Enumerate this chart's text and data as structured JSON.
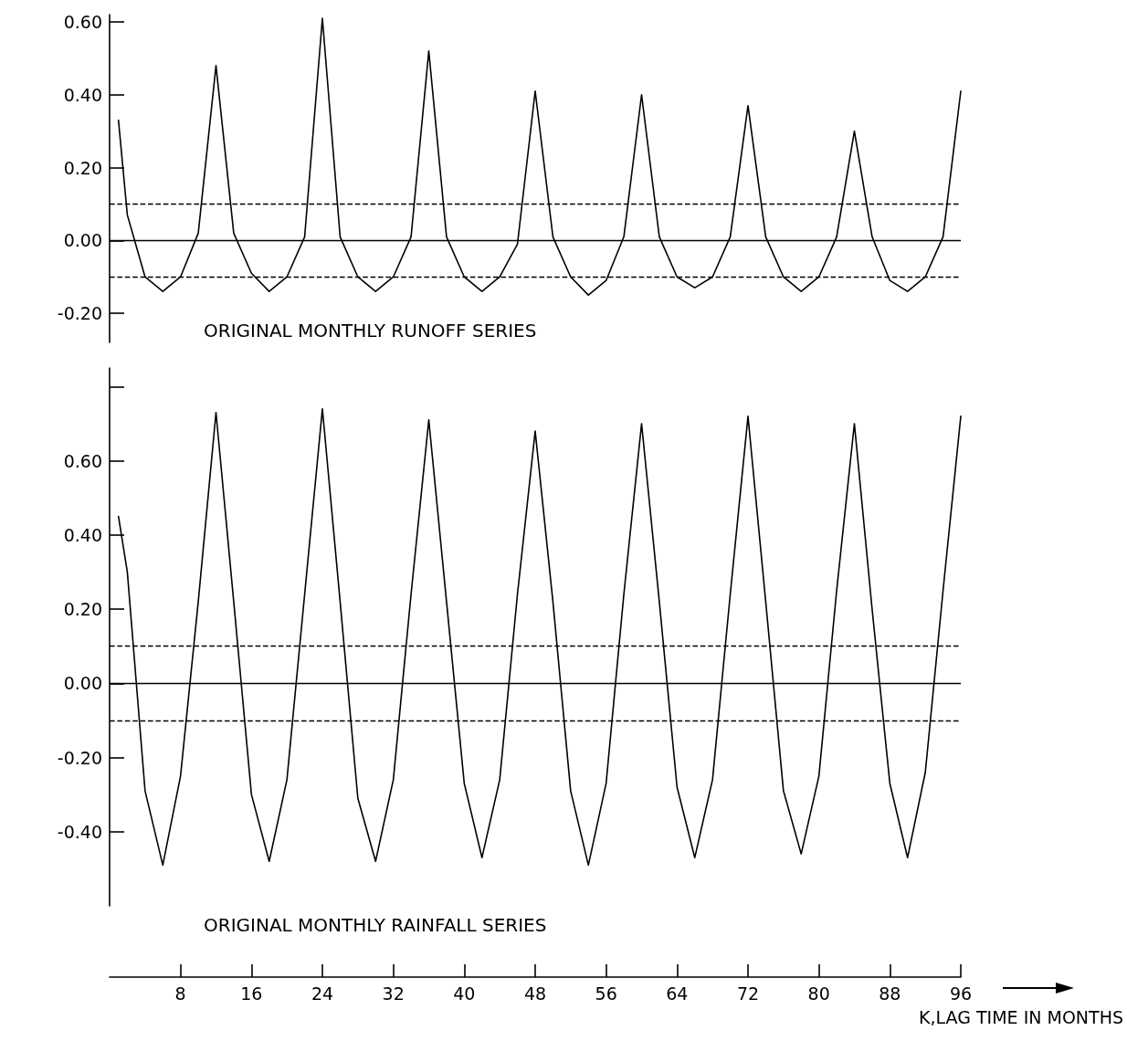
{
  "chart_data": [
    {
      "type": "line",
      "title": "ORIGINAL MONTHLY RUNOFF SERIES",
      "x": [
        1,
        2,
        4,
        6,
        8,
        10,
        12,
        14,
        16,
        18,
        20,
        22,
        24,
        26,
        28,
        30,
        32,
        34,
        36,
        38,
        40,
        42,
        44,
        46,
        48,
        50,
        52,
        54,
        56,
        58,
        60,
        62,
        64,
        66,
        68,
        70,
        72,
        74,
        76,
        78,
        80,
        82,
        84,
        86,
        88,
        90,
        92,
        94,
        96
      ],
      "series": [
        {
          "color": "#000000",
          "values": [
            0.33,
            0.07,
            -0.1,
            -0.14,
            -0.1,
            0.02,
            0.48,
            0.02,
            -0.09,
            -0.14,
            -0.1,
            0.01,
            0.61,
            0.01,
            -0.1,
            -0.14,
            -0.1,
            0.01,
            0.52,
            0.01,
            -0.1,
            -0.14,
            -0.1,
            -0.01,
            0.41,
            0.01,
            -0.1,
            -0.15,
            -0.11,
            0.01,
            0.4,
            0.01,
            -0.1,
            -0.13,
            -0.1,
            0.01,
            0.37,
            0.01,
            -0.1,
            -0.14,
            -0.1,
            0.01,
            0.3,
            0.01,
            -0.11,
            -0.14,
            -0.1,
            0.01,
            0.41
          ]
        }
      ],
      "xlim": [
        0,
        96
      ],
      "ylim": [
        -0.28,
        0.62
      ],
      "yticks": [
        {
          "value": -0.2,
          "label": "-0.20"
        },
        {
          "value": 0,
          "label": "0.00"
        },
        {
          "value": 0.2,
          "label": "0.20"
        },
        {
          "value": 0.4,
          "label": "0.40"
        },
        {
          "value": 0.6,
          "label": "0.60"
        }
      ],
      "tick_labels": "y",
      "grid": false,
      "marker": "none",
      "line_style": "solid",
      "ref_lines": [
        {
          "axis": "y",
          "value": 0.1,
          "line_style": "dashed",
          "color": "#000000"
        },
        {
          "axis": "y",
          "value": 0,
          "line_style": "solid",
          "color": "#000000"
        },
        {
          "axis": "y",
          "value": -0.1,
          "line_style": "dashed",
          "color": "#000000"
        }
      ]
    },
    {
      "type": "line",
      "title": "ORIGINAL MONTHLY RAINFALL SERIES",
      "xlabel": "K,LAG TIME IN MONTHS",
      "x": [
        1,
        2,
        4,
        6,
        8,
        10,
        12,
        14,
        16,
        18,
        20,
        22,
        24,
        26,
        28,
        30,
        32,
        34,
        36,
        38,
        40,
        42,
        44,
        46,
        48,
        50,
        52,
        54,
        56,
        58,
        60,
        62,
        64,
        66,
        68,
        70,
        72,
        74,
        76,
        78,
        80,
        82,
        84,
        86,
        88,
        90,
        92,
        94,
        96
      ],
      "series": [
        {
          "color": "#000000",
          "values": [
            0.45,
            0.3,
            -0.29,
            -0.49,
            -0.25,
            0.22,
            0.73,
            0.22,
            -0.3,
            -0.48,
            -0.26,
            0.24,
            0.74,
            0.22,
            -0.31,
            -0.48,
            -0.26,
            0.24,
            0.71,
            0.22,
            -0.27,
            -0.47,
            -0.26,
            0.24,
            0.68,
            0.22,
            -0.29,
            -0.49,
            -0.27,
            0.24,
            0.7,
            0.22,
            -0.28,
            -0.47,
            -0.26,
            0.24,
            0.72,
            0.22,
            -0.29,
            -0.46,
            -0.25,
            0.25,
            0.7,
            0.2,
            -0.27,
            -0.47,
            -0.24,
            0.25,
            0.72
          ]
        }
      ],
      "xlim": [
        0,
        96
      ],
      "xticks": [
        8,
        16,
        24,
        32,
        40,
        48,
        56,
        64,
        72,
        80,
        88,
        96
      ],
      "ylim": [
        -0.6,
        0.85
      ],
      "yticks": [
        {
          "value": -0.4,
          "label": "-0.40"
        },
        {
          "value": -0.2,
          "label": "-0.20"
        },
        {
          "value": 0,
          "label": "0.00"
        },
        {
          "value": 0.2,
          "label": "0.20"
        },
        {
          "value": 0.4,
          "label": "0.40"
        },
        {
          "value": 0.6,
          "label": "0.60"
        },
        {
          "value": 0.8,
          "label": null
        }
      ],
      "grid": false,
      "marker": "none",
      "line_style": "solid",
      "ref_lines": [
        {
          "axis": "y",
          "value": 0.1,
          "line_style": "dashed",
          "color": "#000000"
        },
        {
          "axis": "y",
          "value": 0,
          "line_style": "solid",
          "color": "#000000"
        },
        {
          "axis": "y",
          "value": -0.1,
          "line_style": "dashed",
          "color": "#000000"
        }
      ]
    }
  ]
}
